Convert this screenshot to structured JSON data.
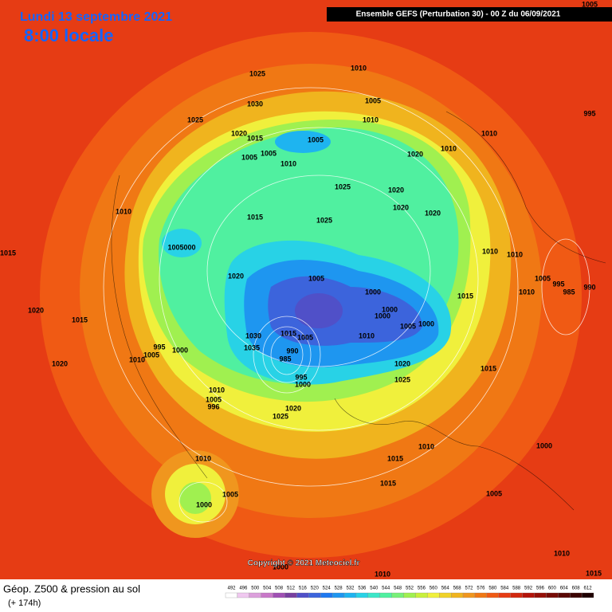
{
  "header": {
    "date": "Lundi 13 septembre 2021",
    "time": "8:00 locale",
    "model": "Ensemble GEFS  (Perturbation 30)  -  00 Z du 06/09/2021"
  },
  "footer": {
    "copyright": "Copyright © 2021 Meteociel.fr",
    "title": "Géop. Z500 & pression au sol",
    "lead": "(+ 174h)"
  },
  "scale": {
    "values": [
      "492",
      "496",
      "500",
      "504",
      "508",
      "512",
      "516",
      "520",
      "524",
      "528",
      "532",
      "536",
      "540",
      "544",
      "548",
      "552",
      "556",
      "560",
      "564",
      "568",
      "572",
      "576",
      "580",
      "584",
      "588",
      "592",
      "596",
      "600",
      "604",
      "608",
      "612"
    ],
    "colors": [
      "#ffffff",
      "#f0c8f0",
      "#dca0dc",
      "#c878c8",
      "#a050b4",
      "#7840a0",
      "#5050c8",
      "#3c64dc",
      "#1e78f0",
      "#1e96f0",
      "#1eb4f0",
      "#28d2e6",
      "#3ce6c8",
      "#50f0a0",
      "#78f078",
      "#a0f050",
      "#c8f03c",
      "#f0f03c",
      "#f0d228",
      "#f0b41e",
      "#f0961e",
      "#f07814",
      "#f05a14",
      "#e63c14",
      "#d2280f",
      "#b4140a",
      "#961008",
      "#780c06",
      "#5a0804",
      "#3c0402",
      "#1e0000"
    ]
  },
  "isobars": [
    "1005",
    "1025",
    "1010",
    "1030",
    "1005",
    "1025",
    "1010",
    "995",
    "1020",
    "1015",
    "1005",
    "1005",
    "1005",
    "1020",
    "1010",
    "1010",
    "1010",
    "1025",
    "1020",
    "1020",
    "1020",
    "1010",
    "1015",
    "1025",
    "1015",
    "1005000",
    "1010",
    "1010",
    "1020",
    "1005",
    "1005",
    "995",
    "990",
    "985",
    "1010",
    "1000",
    "1015",
    "1020",
    "1015",
    "1000",
    "1000",
    "1005",
    "1000",
    "1010",
    "1015",
    "1030",
    "1005",
    "1035",
    "990",
    "985",
    "995",
    "1000",
    "1005",
    "1010",
    "1020",
    "1020",
    "1015",
    "995",
    "1000",
    "1025",
    "1010",
    "1005",
    "996",
    "1020",
    "1025",
    "1010",
    "1000",
    "1015",
    "1010",
    "1015",
    "1005",
    "1005",
    "1000",
    "1010",
    "1010",
    "1015",
    "1000"
  ]
}
